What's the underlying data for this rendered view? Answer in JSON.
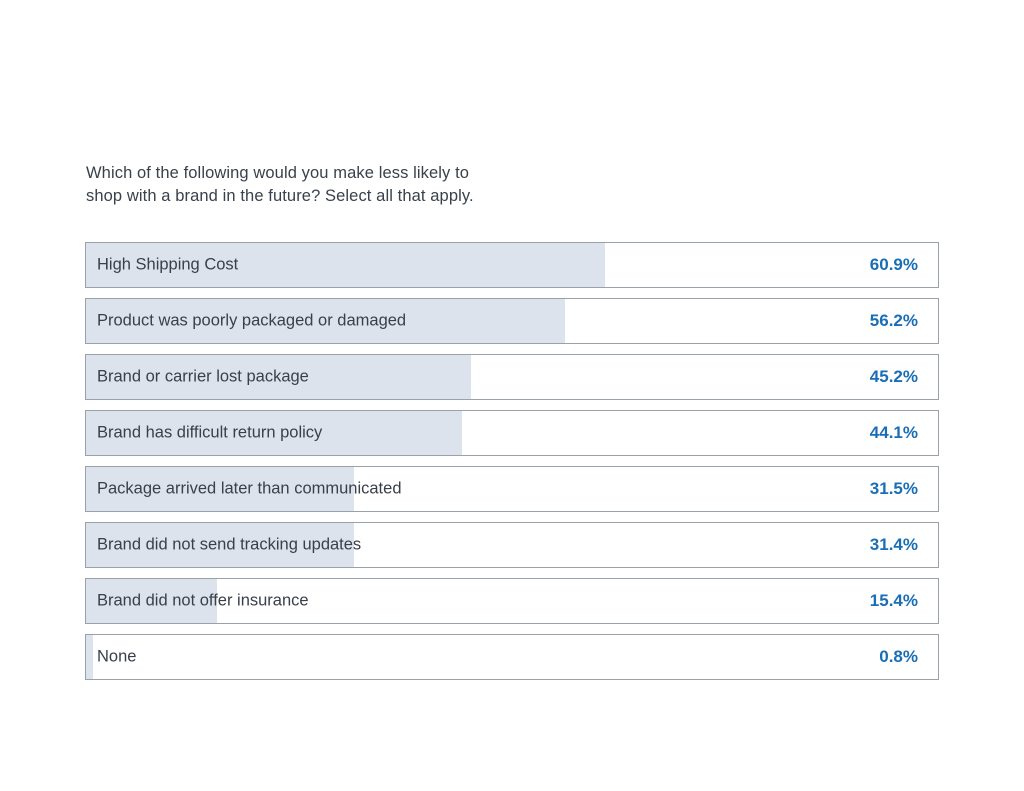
{
  "title": {
    "line1": "Which of the following would you make less likely to",
    "line2": "shop with a brand in the future? Select all that apply."
  },
  "chart_data": {
    "type": "bar",
    "orientation": "horizontal",
    "title": "Which of the following would you make less likely to shop with a brand in the future? Select all that apply.",
    "categories": [
      "High Shipping Cost",
      "Product was poorly packaged or damaged",
      "Brand or carrier lost package",
      "Brand has difficult return policy",
      "Package arrived later than communicated",
      "Brand did not send tracking updates",
      "Brand did not offer insurance",
      "None"
    ],
    "values": [
      60.9,
      56.2,
      45.2,
      44.1,
      31.5,
      31.4,
      15.4,
      0.8
    ],
    "value_labels": [
      "60.9%",
      "56.2%",
      "45.2%",
      "44.1%",
      "31.5%",
      "31.4%",
      "15.4%",
      "0.8%"
    ],
    "xlim": [
      0,
      100
    ],
    "grid": false,
    "legend": false,
    "colors": {
      "bar_fill": "#dce3ec",
      "row_border": "#99a1ab",
      "value_text": "#1a6eb5",
      "label_text": "#39404a",
      "background": "#ffffff"
    }
  }
}
